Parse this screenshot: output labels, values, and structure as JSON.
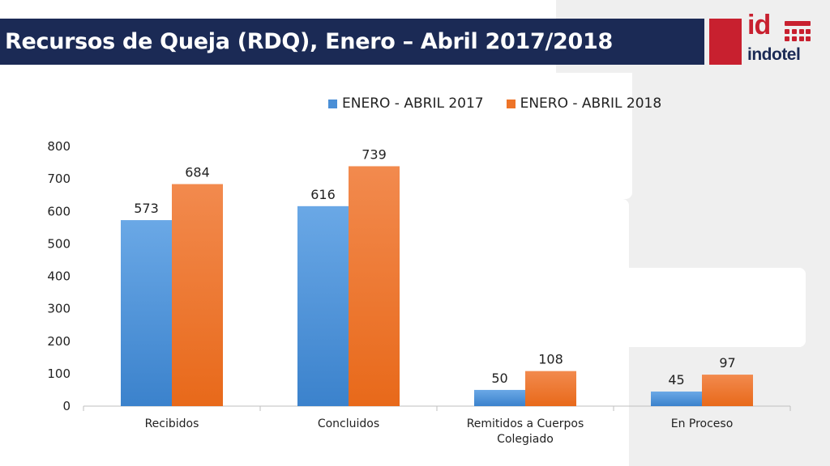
{
  "header": {
    "title": "Recursos de Queja (RDQ), Enero – Abril 2017/2018",
    "logo_mark": "id",
    "logo_name": "indotel"
  },
  "colors": {
    "title_bar": "#1b2a55",
    "accent_red": "#c8202f",
    "series_2017": "#4a8fd6",
    "series_2018": "#ee7428"
  },
  "chart_data": {
    "type": "bar",
    "categories": [
      "Recibidos",
      "Concluidos",
      "Remitidos a Cuerpos Colegiado",
      "En Proceso"
    ],
    "category_lines": [
      [
        "Recibidos"
      ],
      [
        "Concluidos"
      ],
      [
        "Remitidos a Cuerpos",
        "Colegiado"
      ],
      [
        "En Proceso"
      ]
    ],
    "series": [
      {
        "name": "ENERO - ABRIL 2017",
        "values": [
          573,
          616,
          50,
          45
        ]
      },
      {
        "name": "ENERO - ABRIL 2018",
        "values": [
          684,
          739,
          108,
          97
        ]
      }
    ],
    "ylim": [
      0,
      800
    ],
    "yticks": [
      0,
      100,
      200,
      300,
      400,
      500,
      600,
      700,
      800
    ],
    "legend_position": "top",
    "grid": false
  }
}
